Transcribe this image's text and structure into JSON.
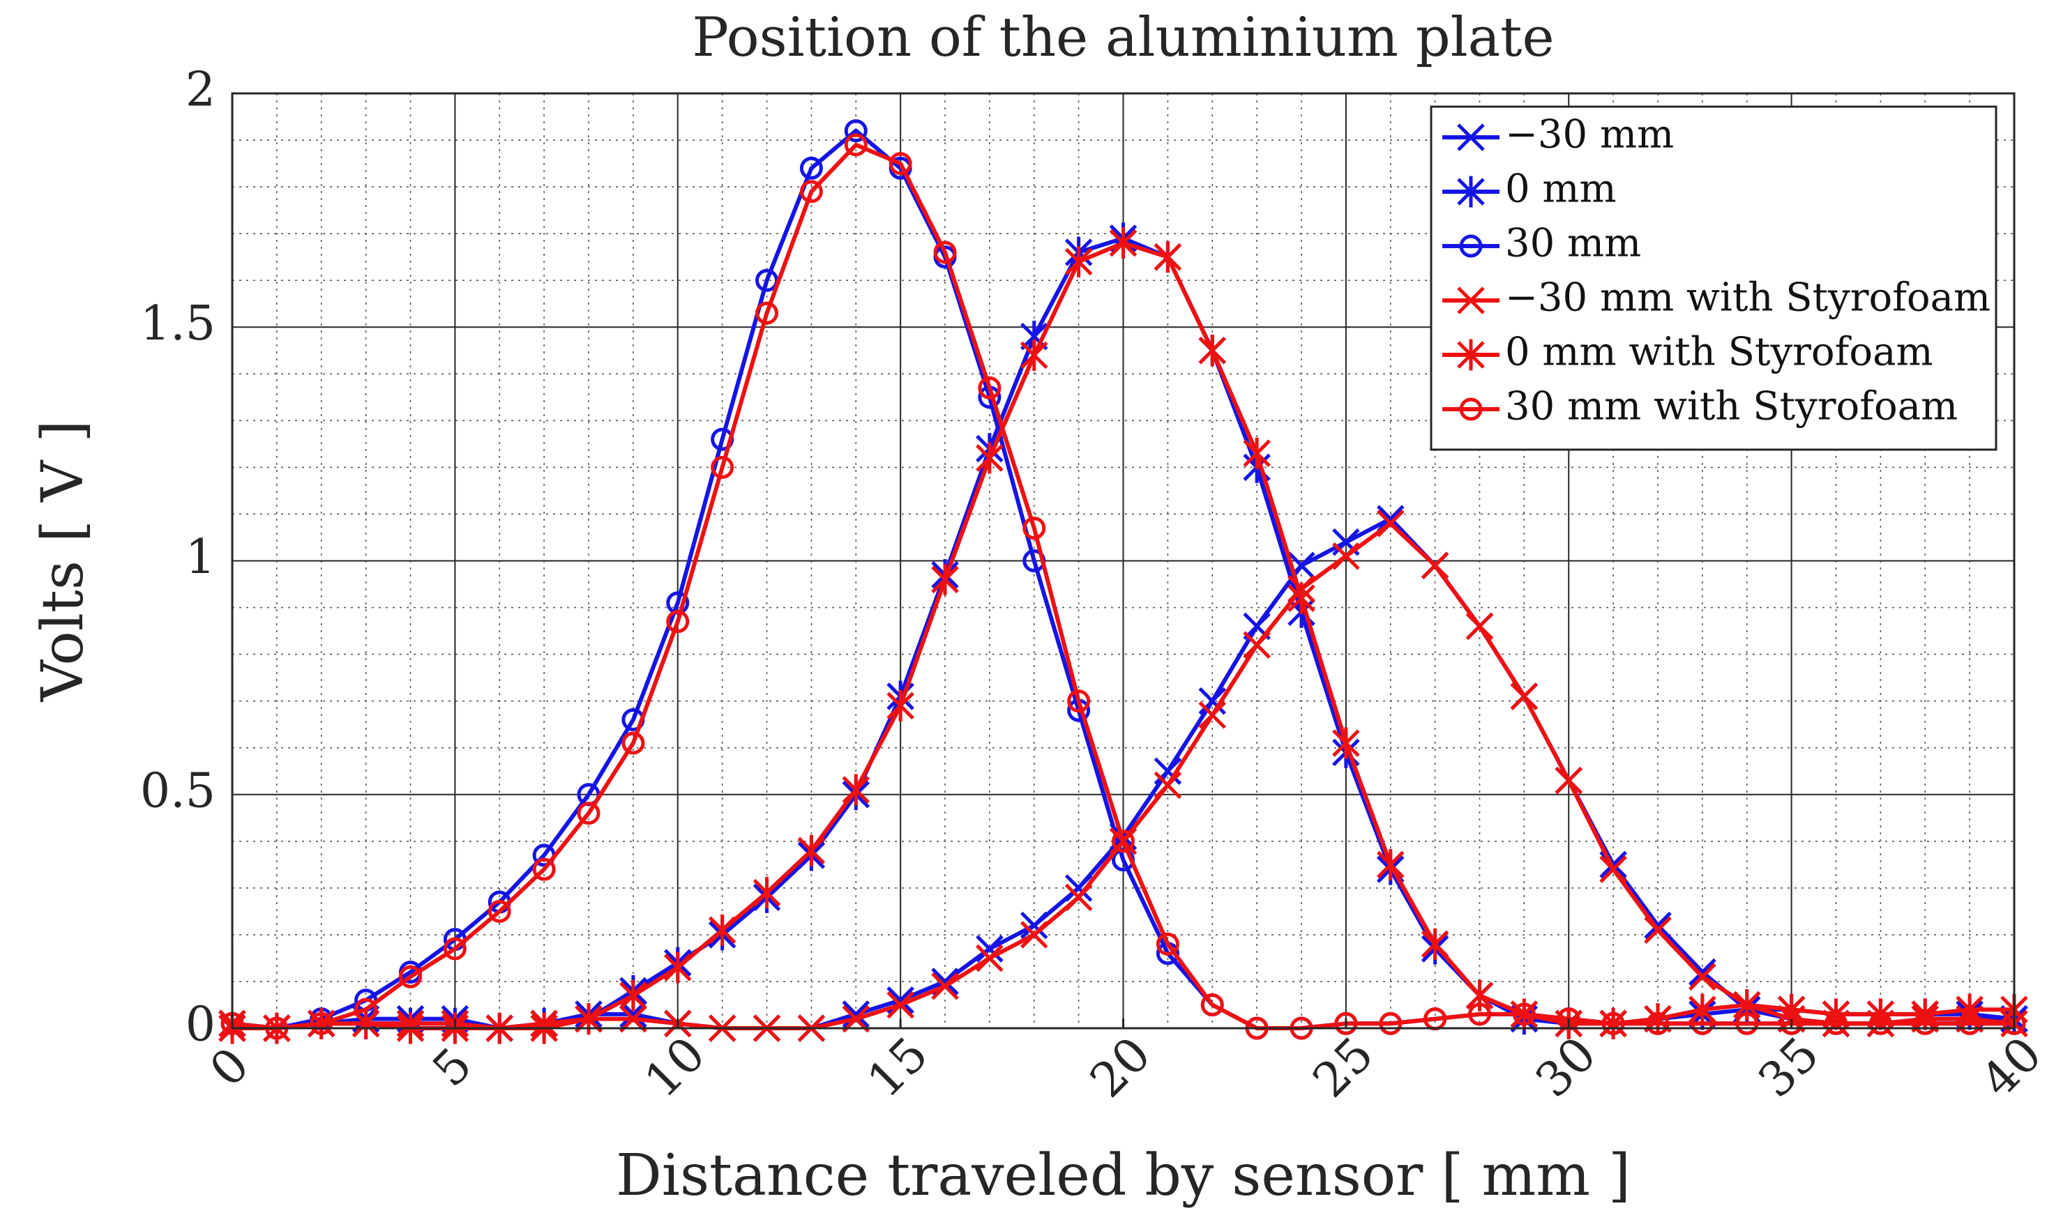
{
  "chart_data": {
    "type": "line",
    "title": "Position of the aluminium plate",
    "xlabel": "Distance traveled by sensor [ mm ]",
    "ylabel": "Volts [ V ]",
    "xlim": [
      0,
      40
    ],
    "ylim": [
      0,
      2
    ],
    "xticks": [
      "0",
      "5",
      "10",
      "15",
      "20",
      "25",
      "30",
      "35",
      "40"
    ],
    "yticks": [
      "0",
      "0.5",
      "1",
      "1.5",
      "2"
    ],
    "grid": true,
    "minor_grid": true,
    "legend_position": "top-right",
    "x": [
      0,
      1,
      2,
      3,
      4,
      5,
      6,
      7,
      8,
      9,
      10,
      11,
      12,
      13,
      14,
      15,
      16,
      17,
      18,
      19,
      20,
      21,
      22,
      23,
      24,
      25,
      26,
      27,
      28,
      29,
      30,
      31,
      32,
      33,
      34,
      35,
      36,
      37,
      38,
      39,
      40
    ],
    "series": [
      {
        "name": "−30 mm",
        "color": "#1414e6",
        "marker": "x",
        "values": [
          0.01,
          0.0,
          0.01,
          0.02,
          0.02,
          0.02,
          0.0,
          0.01,
          0.03,
          0.03,
          0.01,
          0.0,
          0.0,
          0.0,
          0.03,
          0.06,
          0.1,
          0.17,
          0.22,
          0.3,
          0.41,
          0.55,
          0.7,
          0.86,
          0.99,
          1.04,
          1.09,
          0.99,
          0.86,
          0.71,
          0.53,
          0.35,
          0.22,
          0.12,
          0.04,
          0.02,
          0.01,
          0.01,
          0.02,
          0.02,
          0.02
        ]
      },
      {
        "name": "0 mm",
        "color": "#1414e6",
        "marker": "star",
        "values": [
          0.0,
          0.0,
          0.01,
          0.01,
          0.01,
          0.01,
          0.0,
          0.01,
          0.02,
          0.08,
          0.14,
          0.2,
          0.28,
          0.37,
          0.5,
          0.71,
          0.97,
          1.24,
          1.48,
          1.66,
          1.69,
          1.65,
          1.45,
          1.2,
          0.89,
          0.59,
          0.34,
          0.17,
          0.07,
          0.02,
          0.01,
          0.01,
          0.02,
          0.03,
          0.04,
          0.04,
          0.03,
          0.03,
          0.03,
          0.03,
          0.02
        ]
      },
      {
        "name": "30 mm",
        "color": "#1414e6",
        "marker": "o",
        "values": [
          0.01,
          0.0,
          0.02,
          0.06,
          0.12,
          0.19,
          0.27,
          0.37,
          0.5,
          0.66,
          0.91,
          1.26,
          1.6,
          1.84,
          1.92,
          1.84,
          1.65,
          1.35,
          1.0,
          0.68,
          0.36,
          0.16,
          0.05,
          0.0,
          0.0,
          0.01,
          0.01,
          0.02,
          0.03,
          0.03,
          0.02,
          0.01,
          0.01,
          0.01,
          0.01,
          0.01,
          0.01,
          0.01,
          0.01,
          0.01,
          0.01
        ]
      },
      {
        "name": "−30 mm with Styrofoam",
        "color": "#ee1111",
        "marker": "x",
        "values": [
          0.01,
          0.0,
          0.01,
          0.01,
          0.01,
          0.01,
          0.0,
          0.01,
          0.02,
          0.02,
          0.01,
          0.0,
          0.0,
          0.0,
          0.02,
          0.05,
          0.09,
          0.15,
          0.2,
          0.28,
          0.4,
          0.52,
          0.67,
          0.82,
          0.94,
          1.01,
          1.08,
          0.99,
          0.86,
          0.71,
          0.53,
          0.34,
          0.21,
          0.11,
          0.05,
          0.02,
          0.01,
          0.01,
          0.02,
          0.02,
          0.01
        ]
      },
      {
        "name": "0 mm with Styrofoam",
        "color": "#ee1111",
        "marker": "star",
        "values": [
          0.0,
          0.0,
          0.01,
          0.01,
          0.0,
          0.0,
          0.0,
          0.0,
          0.02,
          0.07,
          0.13,
          0.21,
          0.29,
          0.38,
          0.51,
          0.69,
          0.96,
          1.22,
          1.44,
          1.64,
          1.68,
          1.65,
          1.45,
          1.23,
          0.92,
          0.61,
          0.35,
          0.18,
          0.07,
          0.03,
          0.01,
          0.01,
          0.02,
          0.04,
          0.05,
          0.04,
          0.03,
          0.03,
          0.03,
          0.04,
          0.04
        ]
      },
      {
        "name": "30 mm with Styrofoam",
        "color": "#ee1111",
        "marker": "o",
        "values": [
          0.01,
          0.0,
          0.01,
          0.04,
          0.11,
          0.17,
          0.25,
          0.34,
          0.46,
          0.61,
          0.87,
          1.2,
          1.53,
          1.79,
          1.89,
          1.85,
          1.66,
          1.37,
          1.07,
          0.7,
          0.4,
          0.18,
          0.05,
          0.0,
          0.0,
          0.01,
          0.01,
          0.02,
          0.03,
          0.03,
          0.02,
          0.01,
          0.01,
          0.01,
          0.01,
          0.01,
          0.01,
          0.01,
          0.01,
          0.01,
          0.01
        ]
      }
    ]
  }
}
